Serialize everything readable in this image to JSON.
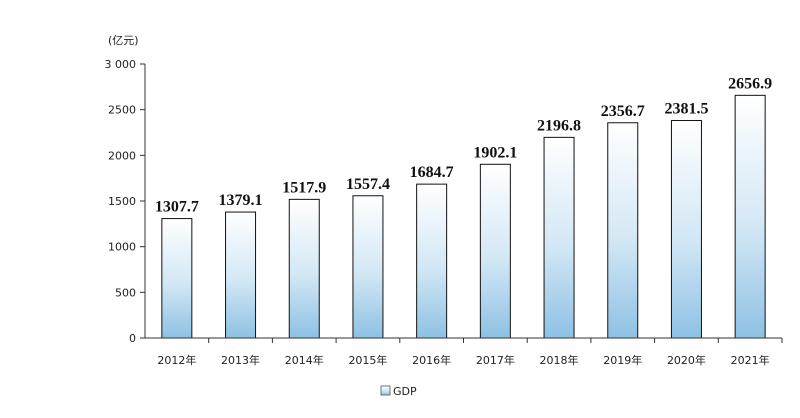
{
  "chart_data": {
    "type": "bar",
    "title": "",
    "xlabel": "",
    "ylabel": "",
    "unit": "(亿元)",
    "categories": [
      "2012年",
      "2013年",
      "2014年",
      "2015年",
      "2016年",
      "2017年",
      "2018年",
      "2019年",
      "2020年",
      "2021年"
    ],
    "series": [
      {
        "name": "GDP",
        "values": [
          1307.7,
          1379.1,
          1517.9,
          1557.4,
          1684.7,
          1902.1,
          2196.8,
          2356.7,
          2381.5,
          2656.9
        ],
        "labels": [
          "1307.7",
          "1379.1",
          "1517.9",
          "1557.4",
          "1684.7",
          "1902.1",
          "2196.8",
          "2356.7",
          "2381.5",
          "2656.9"
        ]
      }
    ],
    "ylim": [
      0,
      3000
    ],
    "yticks": [
      0,
      500,
      1000,
      1500,
      2000,
      2500,
      3000
    ],
    "ytick_labels": [
      "0",
      "500",
      "1000",
      "1500",
      "2000",
      "2500",
      "3 000"
    ],
    "grid": false,
    "legend_position": "bottom",
    "colors": {
      "bar_top": "#ffffff",
      "bar_bottom": "#8ec1e4",
      "bar_edge": "#111111",
      "axis": "#333333"
    }
  }
}
